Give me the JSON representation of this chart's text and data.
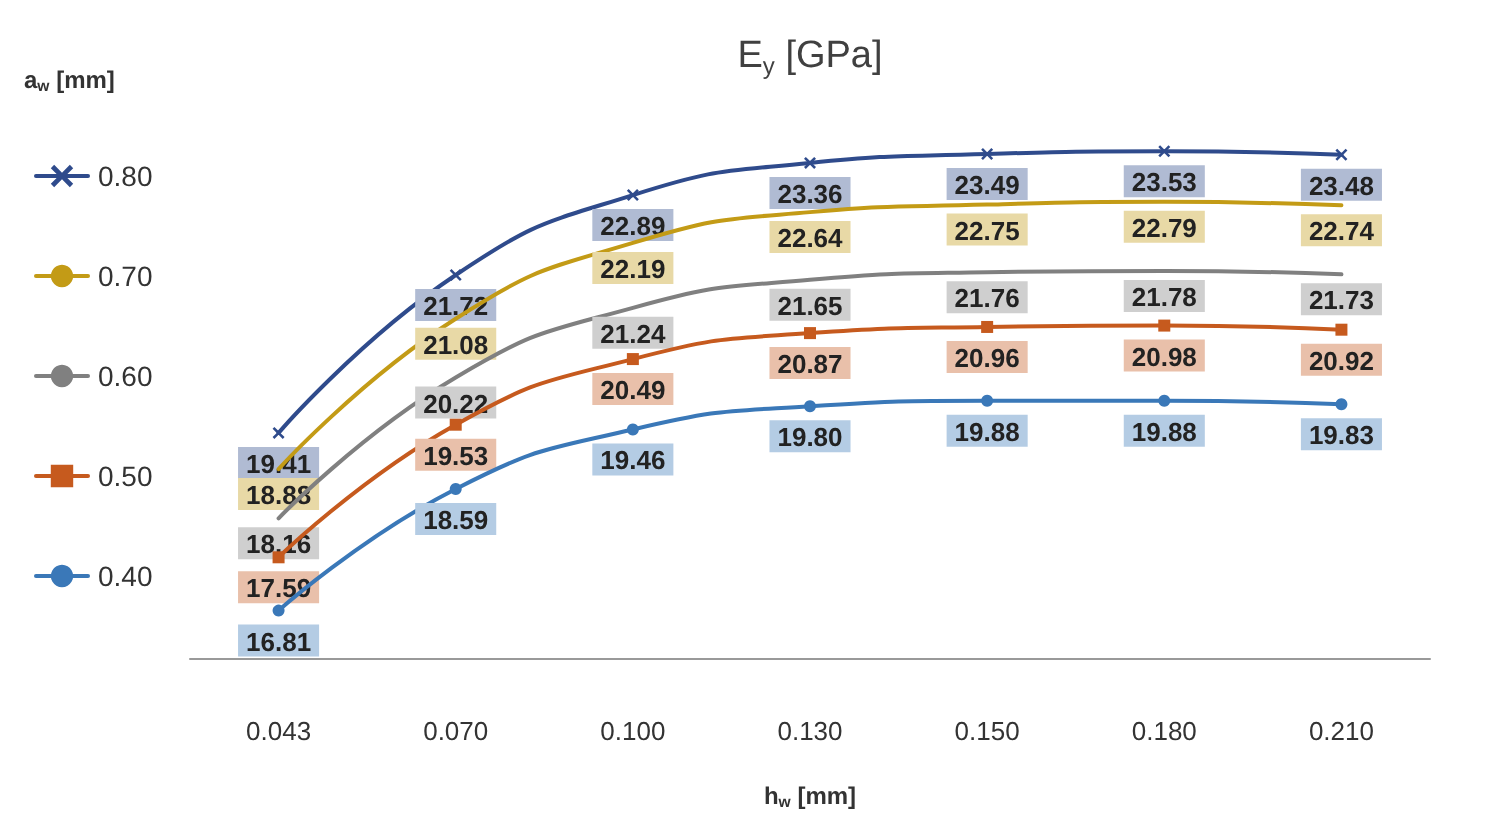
{
  "chart_data": {
    "type": "line",
    "title": "E$_{y}$ [GPa]",
    "xlabel": "h$_{w}$ [mm]",
    "legend_title": "a$_{w}$ [mm]",
    "categories": [
      "0.043",
      "0.070",
      "0.100",
      "0.130",
      "0.150",
      "0.180",
      "0.210"
    ],
    "series": [
      {
        "name": "0.80",
        "color": "#2f4b8c",
        "marker": "cross",
        "values": [
          19.41,
          21.72,
          22.89,
          23.36,
          23.49,
          23.53,
          23.48
        ],
        "value_labels": [
          "19.41",
          "21.72",
          "22.89",
          "23.36",
          "23.49",
          "23.53",
          "23.48"
        ]
      },
      {
        "name": "0.70",
        "color": "#c39b16",
        "marker": "none",
        "values": [
          18.88,
          21.08,
          22.19,
          22.64,
          22.75,
          22.79,
          22.74
        ],
        "value_labels": [
          "18.88",
          "21.08",
          "22.19",
          "22.64",
          "22.75",
          "22.79",
          "22.74"
        ]
      },
      {
        "name": "0.60",
        "color": "#808080",
        "marker": "none",
        "values": [
          18.16,
          20.22,
          21.24,
          21.65,
          21.76,
          21.78,
          21.73
        ],
        "value_labels": [
          "18.16",
          "20.22",
          "21.24",
          "21.65",
          "21.76",
          "21.78",
          "21.73"
        ]
      },
      {
        "name": "0.50",
        "color": "#c65a1e",
        "marker": "square",
        "values": [
          17.59,
          19.53,
          20.49,
          20.87,
          20.96,
          20.98,
          20.92
        ],
        "value_labels": [
          "17.59",
          "19.53",
          "20.49",
          "20.87",
          "20.96",
          "20.98",
          "20.92"
        ]
      },
      {
        "name": "0.40",
        "color": "#3a78b8",
        "marker": "circle",
        "values": [
          16.81,
          18.59,
          19.46,
          19.8,
          19.88,
          19.88,
          19.83
        ],
        "value_labels": [
          "16.81",
          "18.59",
          "19.46",
          "19.80",
          "19.88",
          "19.88",
          "19.83"
        ]
      }
    ],
    "legend": "left"
  }
}
